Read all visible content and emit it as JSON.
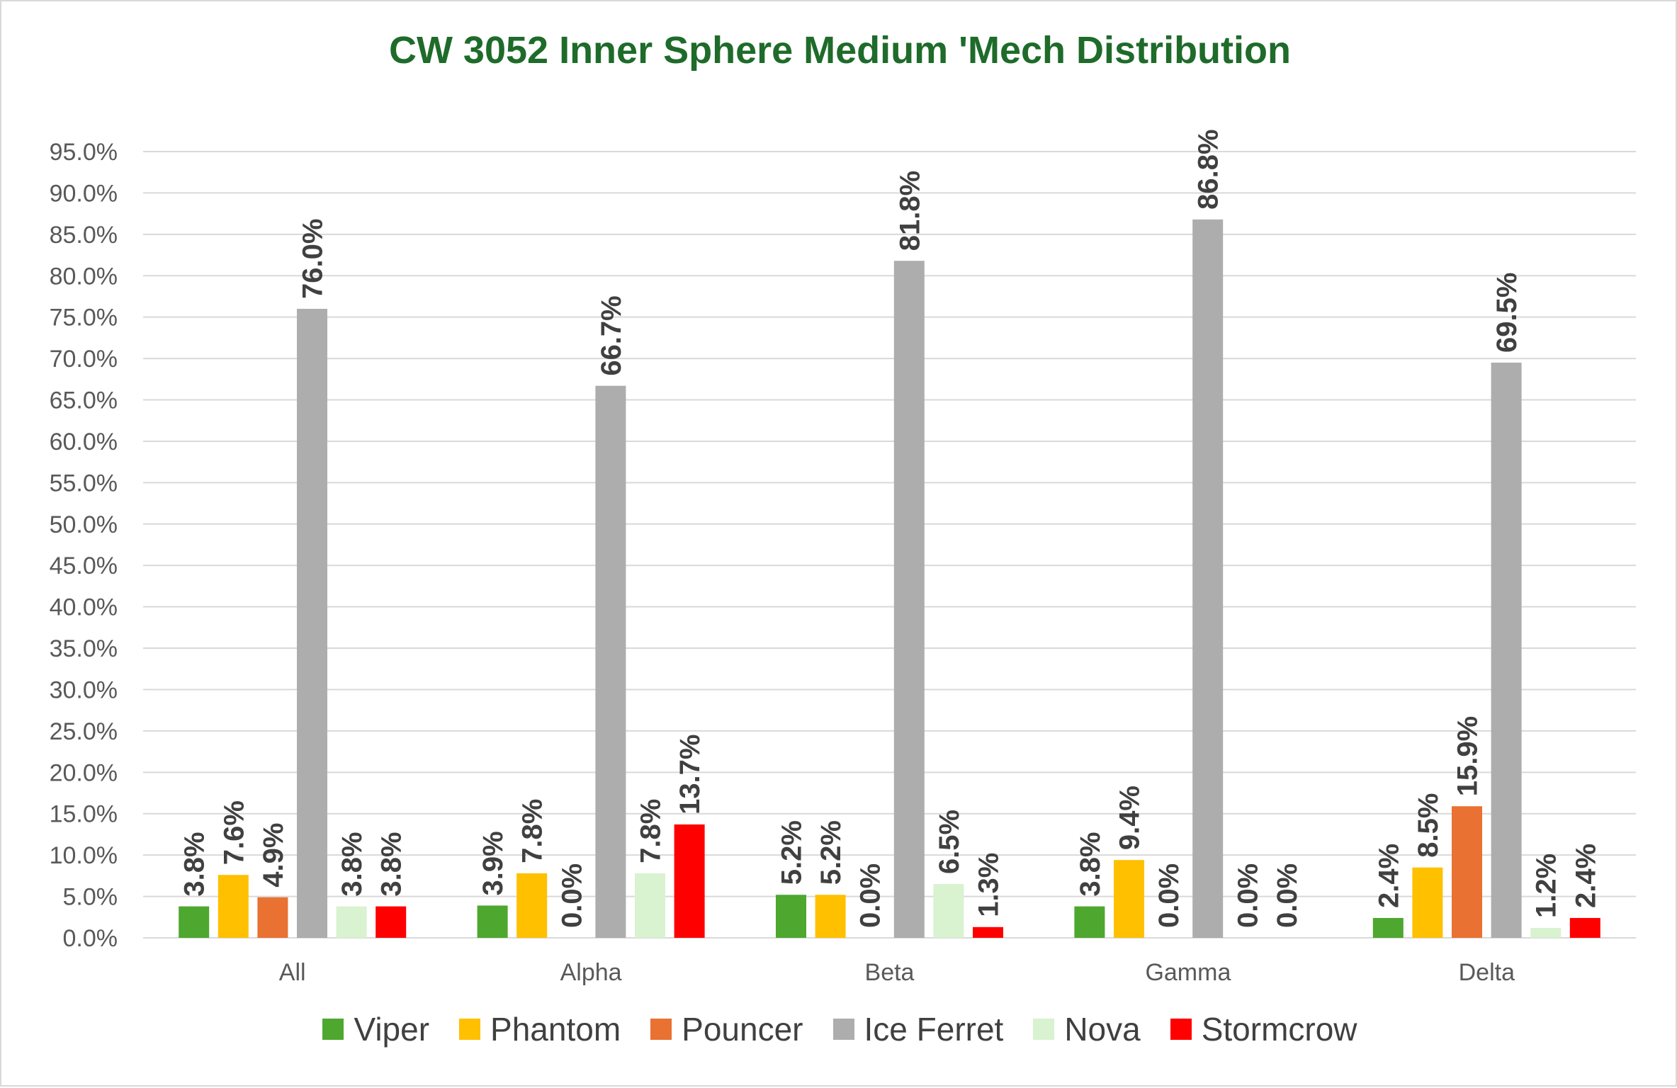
{
  "chart_data": {
    "type": "bar",
    "title": "CW 3052 Inner Sphere Medium 'Mech Distribution",
    "xlabel": "",
    "ylabel": "",
    "ylim": [
      0,
      95
    ],
    "yticks": [
      "0.0%",
      "5.0%",
      "10.0%",
      "15.0%",
      "20.0%",
      "25.0%",
      "30.0%",
      "35.0%",
      "40.0%",
      "45.0%",
      "50.0%",
      "55.0%",
      "60.0%",
      "65.0%",
      "70.0%",
      "75.0%",
      "80.0%",
      "85.0%",
      "90.0%",
      "95.0%"
    ],
    "categories": [
      "All",
      "Alpha",
      "Beta",
      "Gamma",
      "Delta"
    ],
    "grid": true,
    "legend_position": "bottom",
    "series": [
      {
        "name": "Viper",
        "color": "#4ea72e",
        "values": [
          3.8,
          3.9,
          5.2,
          3.8,
          2.4
        ],
        "labels": [
          "3.8%",
          "3.9%",
          "5.2%",
          "3.8%",
          "2.4%"
        ]
      },
      {
        "name": "Phantom",
        "color": "#ffc000",
        "values": [
          7.6,
          7.8,
          5.2,
          9.4,
          8.5
        ],
        "labels": [
          "7.6%",
          "7.8%",
          "5.2%",
          "9.4%",
          "8.5%"
        ]
      },
      {
        "name": "Pouncer",
        "color": "#e97132",
        "values": [
          4.9,
          0.0,
          0.0,
          0.0,
          15.9
        ],
        "labels": [
          "4.9%",
          "0.0%",
          "0.0%",
          "0.0%",
          "15.9%"
        ]
      },
      {
        "name": "Ice Ferret",
        "color": "#adadad",
        "values": [
          76.0,
          66.7,
          81.8,
          86.8,
          69.5
        ],
        "labels": [
          "76.0%",
          "66.7%",
          "81.8%",
          "86.8%",
          "69.5%"
        ]
      },
      {
        "name": "Nova",
        "color": "#d9f2d0",
        "values": [
          3.8,
          7.8,
          6.5,
          0.0,
          1.2
        ],
        "labels": [
          "3.8%",
          "7.8%",
          "6.5%",
          "0.0%",
          "1.2%"
        ]
      },
      {
        "name": "Stormcrow",
        "color": "#ff0000",
        "values": [
          3.8,
          13.7,
          1.3,
          0.0,
          2.4
        ],
        "labels": [
          "3.8%",
          "13.7%",
          "1.3%",
          "0.0%",
          "2.4%"
        ]
      }
    ]
  }
}
